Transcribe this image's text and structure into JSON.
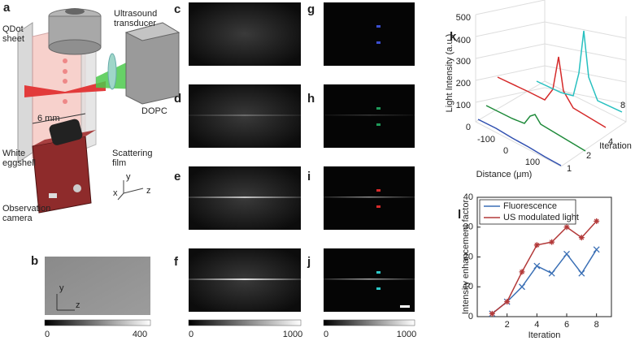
{
  "panel_labels": [
    "a",
    "b",
    "c",
    "d",
    "e",
    "f",
    "g",
    "h",
    "i",
    "j",
    "k",
    "l"
  ],
  "panel_a": {
    "qdot_sheet": [
      "QDot",
      "sheet"
    ],
    "transducer": [
      "Ultrasound",
      "transducer"
    ],
    "dopc": "DOPC",
    "distance": "6 mm",
    "scattering_film": [
      "Scattering",
      "film"
    ],
    "eggshell": [
      "White",
      "eggshell"
    ],
    "camera": [
      "Observation",
      "camera"
    ],
    "axes": {
      "y": "y",
      "x": "x",
      "z": "z"
    }
  },
  "panel_b": {
    "axes": {
      "y": "y",
      "z": "z"
    },
    "colorbar_ticks": [
      0,
      400
    ]
  },
  "panels_cf": {
    "colorbar_ticks": [
      0,
      1000
    ]
  },
  "panels_gj": {
    "colorbar_ticks": [
      0,
      1000
    ]
  },
  "panel_k": {
    "ylabel": "Light Intensity (a.u.)",
    "yticks": [
      0,
      100,
      200,
      300,
      400,
      500
    ],
    "xlabel": "Distance (μm)",
    "xticks": [
      -100,
      0,
      100
    ],
    "zlabel": "Iteration",
    "zticks": [
      1,
      2,
      4,
      8
    ]
  },
  "chart_data": {
    "type": "line",
    "ylabel": "Intensity enhancement factor",
    "xlabel": "Iteration",
    "x": [
      1,
      2,
      3,
      4,
      5,
      6,
      7,
      8
    ],
    "xlim": [
      0,
      9
    ],
    "xticks": [
      2,
      4,
      6,
      8
    ],
    "ylim": [
      0,
      40
    ],
    "yticks": [
      0,
      10,
      20,
      30,
      40
    ],
    "legend": "upper left",
    "series": [
      {
        "name": "Fluorescence",
        "color": "#3a6fb5",
        "marker": "x",
        "values": [
          1,
          5,
          10,
          17,
          14.5,
          21,
          14.5,
          22.5
        ]
      },
      {
        "name": "US modulated light",
        "color": "#b33a3a",
        "marker": "star",
        "values": [
          1,
          5,
          15,
          24,
          25,
          30,
          26.5,
          32
        ]
      }
    ]
  }
}
